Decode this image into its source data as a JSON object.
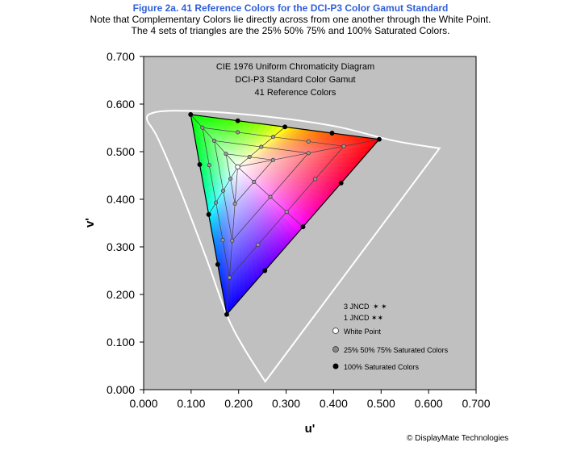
{
  "header": {
    "figure_title": "Figure 2a.   41 Reference Colors for the DCI-P3 Color Gamut Standard",
    "note_line1": "Note that Complementary Colors lie directly across from one another through the White Point.",
    "note_line2": "The 4 sets of triangles are the 25% 50% 75% and 100% Saturated Colors."
  },
  "copyright": "© DisplayMate Technologies",
  "colors": {
    "plot_background": "#c0c0c0",
    "locus": "#ffffff",
    "title_accent": "#2f5fd8",
    "red_primary": "#ff0000",
    "green_primary": "#00ff00",
    "blue_primary": "#0000ff"
  },
  "chart_data": {
    "type": "scatter",
    "title_lines": [
      "CIE 1976 Uniform Chromaticity Diagram",
      "DCI-P3 Standard Color Gamut",
      "41 Reference Colors"
    ],
    "xlabel": "u'",
    "ylabel": "v'",
    "xlim": [
      0,
      0.7
    ],
    "ylim": [
      0,
      0.7
    ],
    "xticks": [
      "0.000",
      "0.100",
      "0.200",
      "0.300",
      "0.400",
      "0.500",
      "0.600",
      "0.700"
    ],
    "yticks": [
      "0.000",
      "0.100",
      "0.200",
      "0.300",
      "0.400",
      "0.500",
      "0.600",
      "0.700"
    ],
    "white_point": [
      0.198,
      0.468
    ],
    "primaries": {
      "red": [
        0.496,
        0.526
      ],
      "green": [
        0.099,
        0.578
      ],
      "blue": [
        0.175,
        0.158
      ]
    },
    "saturation_levels": [
      0.25,
      0.5,
      0.75,
      1.0
    ],
    "spectral_locus": [
      [
        0.256,
        0.017
      ],
      [
        0.212,
        0.086
      ],
      [
        0.175,
        0.157
      ],
      [
        0.132,
        0.276
      ],
      [
        0.079,
        0.414
      ],
      [
        0.03,
        0.528
      ],
      [
        0.007,
        0.568
      ],
      [
        0.021,
        0.582
      ],
      [
        0.068,
        0.586
      ],
      [
        0.17,
        0.582
      ],
      [
        0.3,
        0.569
      ],
      [
        0.41,
        0.552
      ],
      [
        0.527,
        0.523
      ],
      [
        0.623,
        0.507
      ]
    ],
    "legend": {
      "jncd3": "3 JNCD",
      "jncd1": "1 JNCD",
      "white_point": "White Point",
      "partial": "25% 50% 75% Saturated Colors",
      "full": "100% Saturated Colors"
    }
  }
}
